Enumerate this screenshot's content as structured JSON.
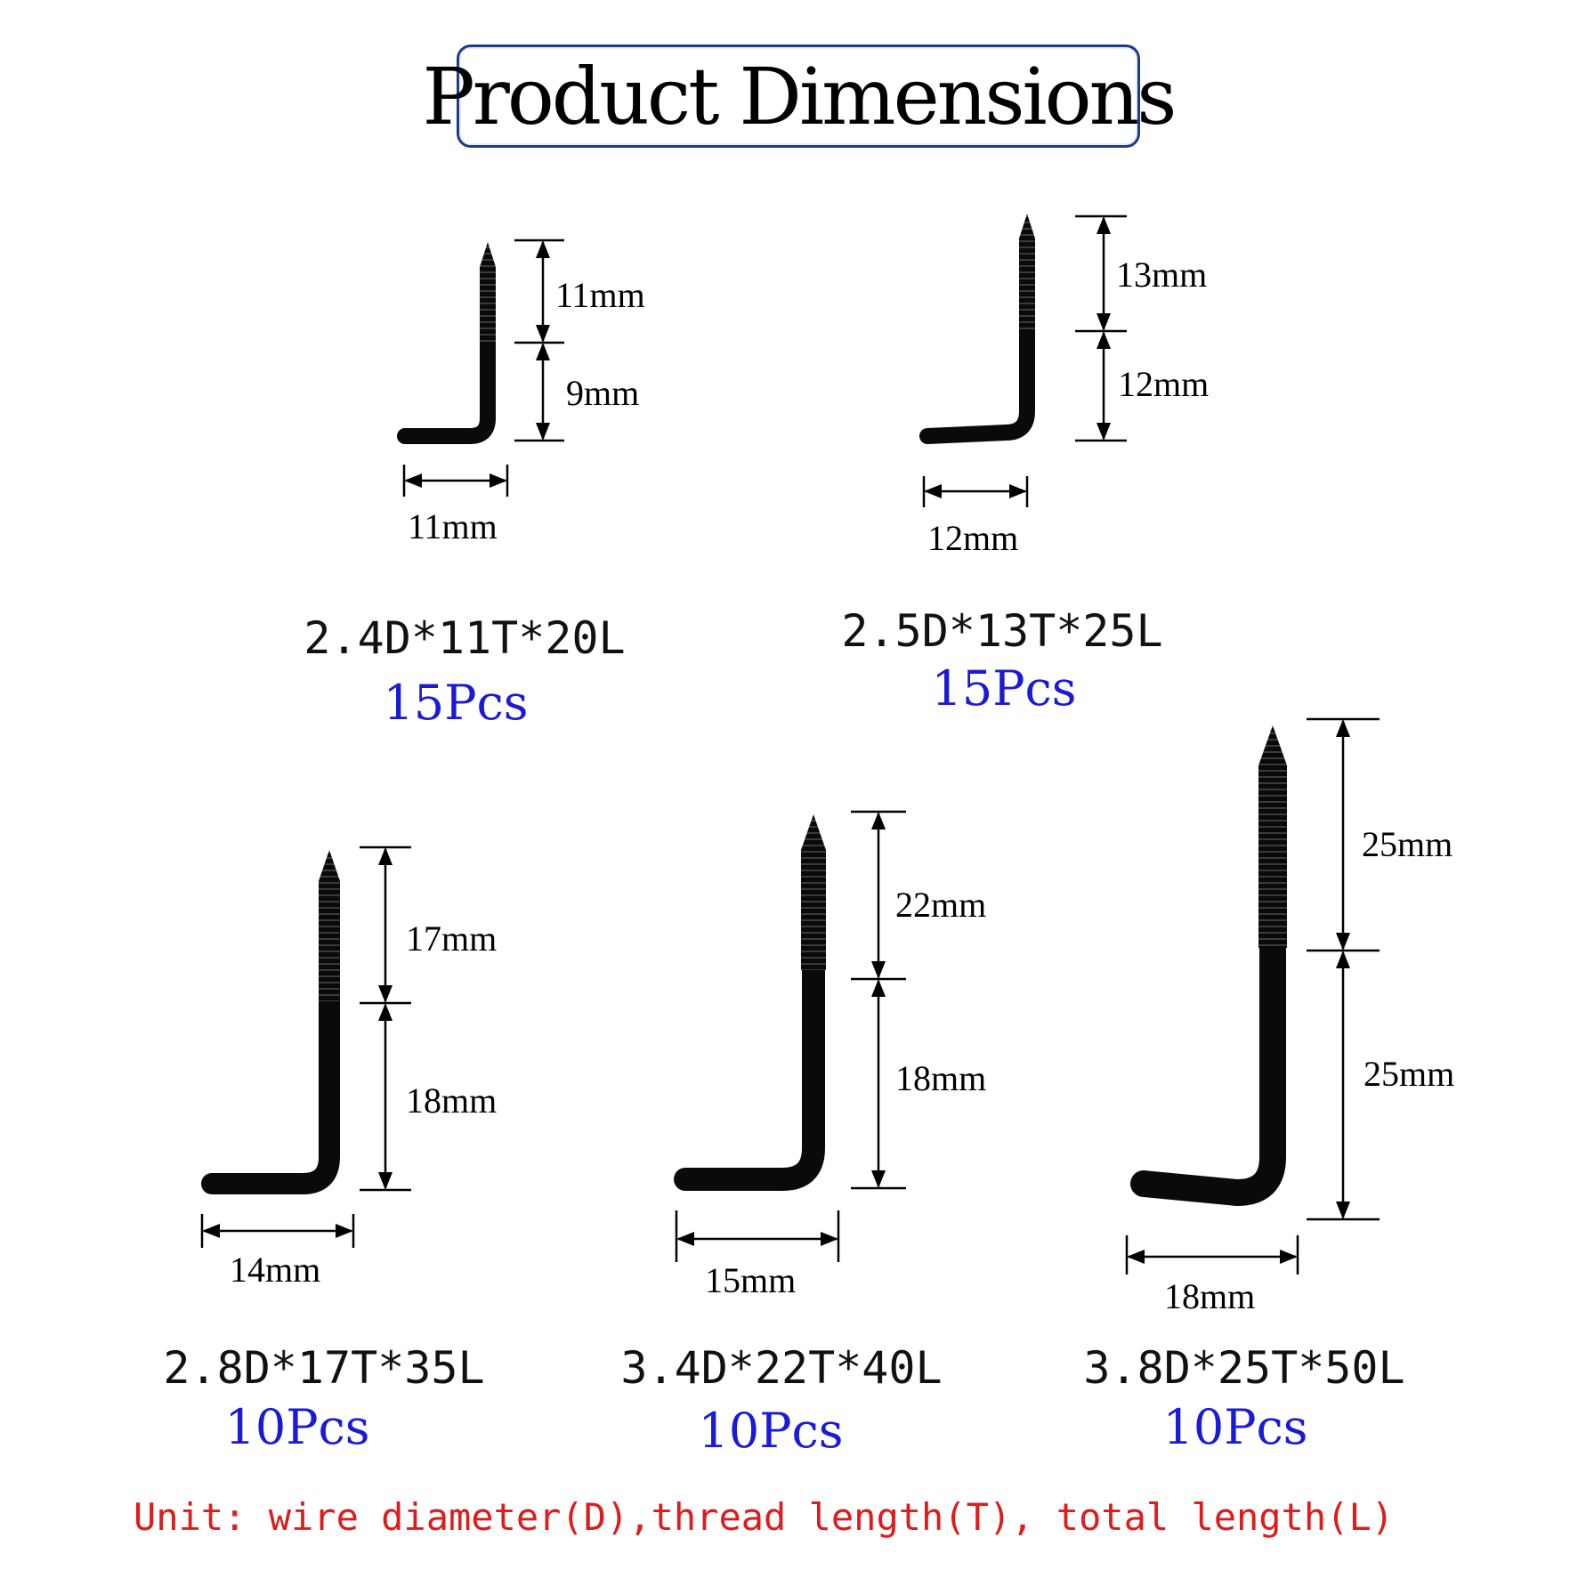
{
  "title": "Product Dimensions",
  "products": [
    {
      "id": "p1",
      "spec": "2.4D*11T*20L",
      "quantity": "15Pcs",
      "thread": "11mm",
      "shank": "9mm",
      "leg": "11mm"
    },
    {
      "id": "p2",
      "spec": "2.5D*13T*25L",
      "quantity": "15Pcs",
      "thread": "13mm",
      "shank": "12mm",
      "leg": "12mm"
    },
    {
      "id": "p3",
      "spec": "2.8D*17T*35L",
      "quantity": "10Pcs",
      "thread": "17mm",
      "shank": "18mm",
      "leg": "14mm"
    },
    {
      "id": "p4",
      "spec": "3.4D*22T*40L",
      "quantity": "10Pcs",
      "thread": "22mm",
      "shank": "18mm",
      "leg": "15mm"
    },
    {
      "id": "p5",
      "spec": "3.8D*25T*50L",
      "quantity": "10Pcs",
      "thread": "25mm",
      "shank": "25mm",
      "leg": "18mm"
    }
  ],
  "unit_note": "Unit: wire diameter(D),thread length(T), total length(L)",
  "colors": {
    "quantity": "#1a1ad8",
    "note": "#e01b1b",
    "title_border": "#1f3c88",
    "hook": "#0a0a0a"
  }
}
